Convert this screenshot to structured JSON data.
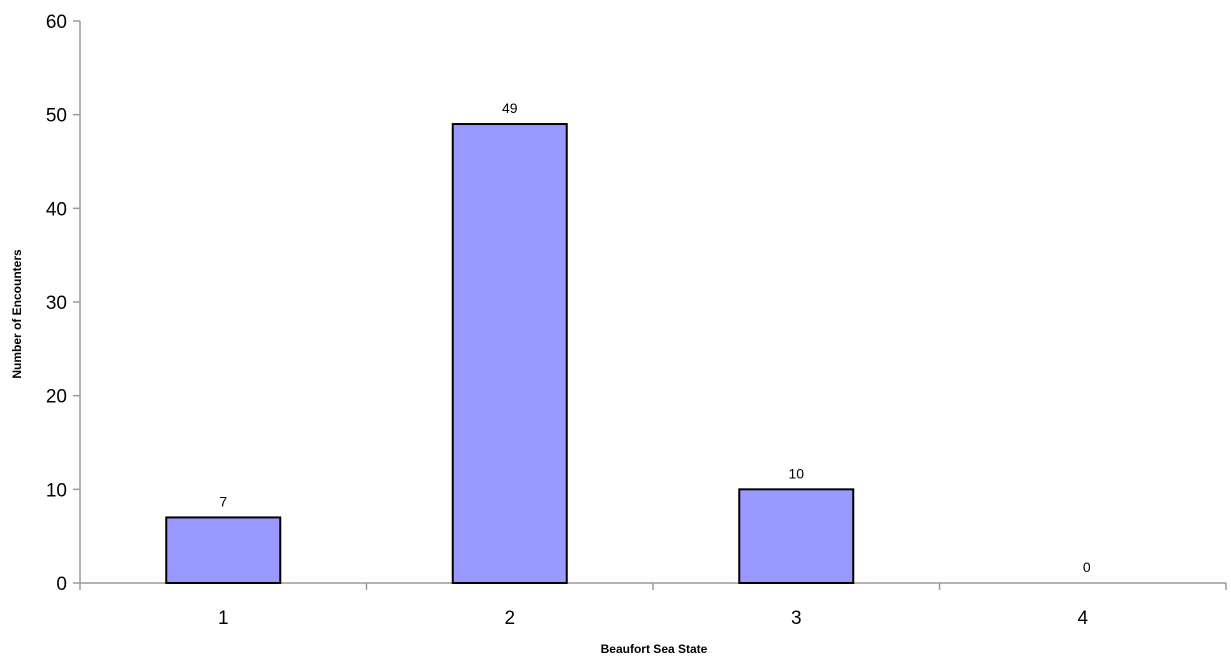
{
  "chart_data": {
    "type": "bar",
    "title": "",
    "xlabel": "Beaufort Sea State",
    "ylabel": "Number of Encounters",
    "categories": [
      "1",
      "2",
      "3",
      "4"
    ],
    "values": [
      7,
      49,
      10,
      0
    ],
    "data_labels": [
      "7",
      "49",
      "10",
      "0"
    ],
    "ylim": [
      0,
      60
    ],
    "y_ticks": [
      0,
      10,
      20,
      30,
      40,
      50,
      60
    ],
    "y_tick_labels": [
      "0",
      "10",
      "20",
      "30",
      "40",
      "50",
      "60"
    ],
    "grid": false,
    "legend": "none",
    "bar_fill": "#9999ff",
    "bar_stroke": "#000000",
    "axis_color": "#9a9a9a"
  }
}
